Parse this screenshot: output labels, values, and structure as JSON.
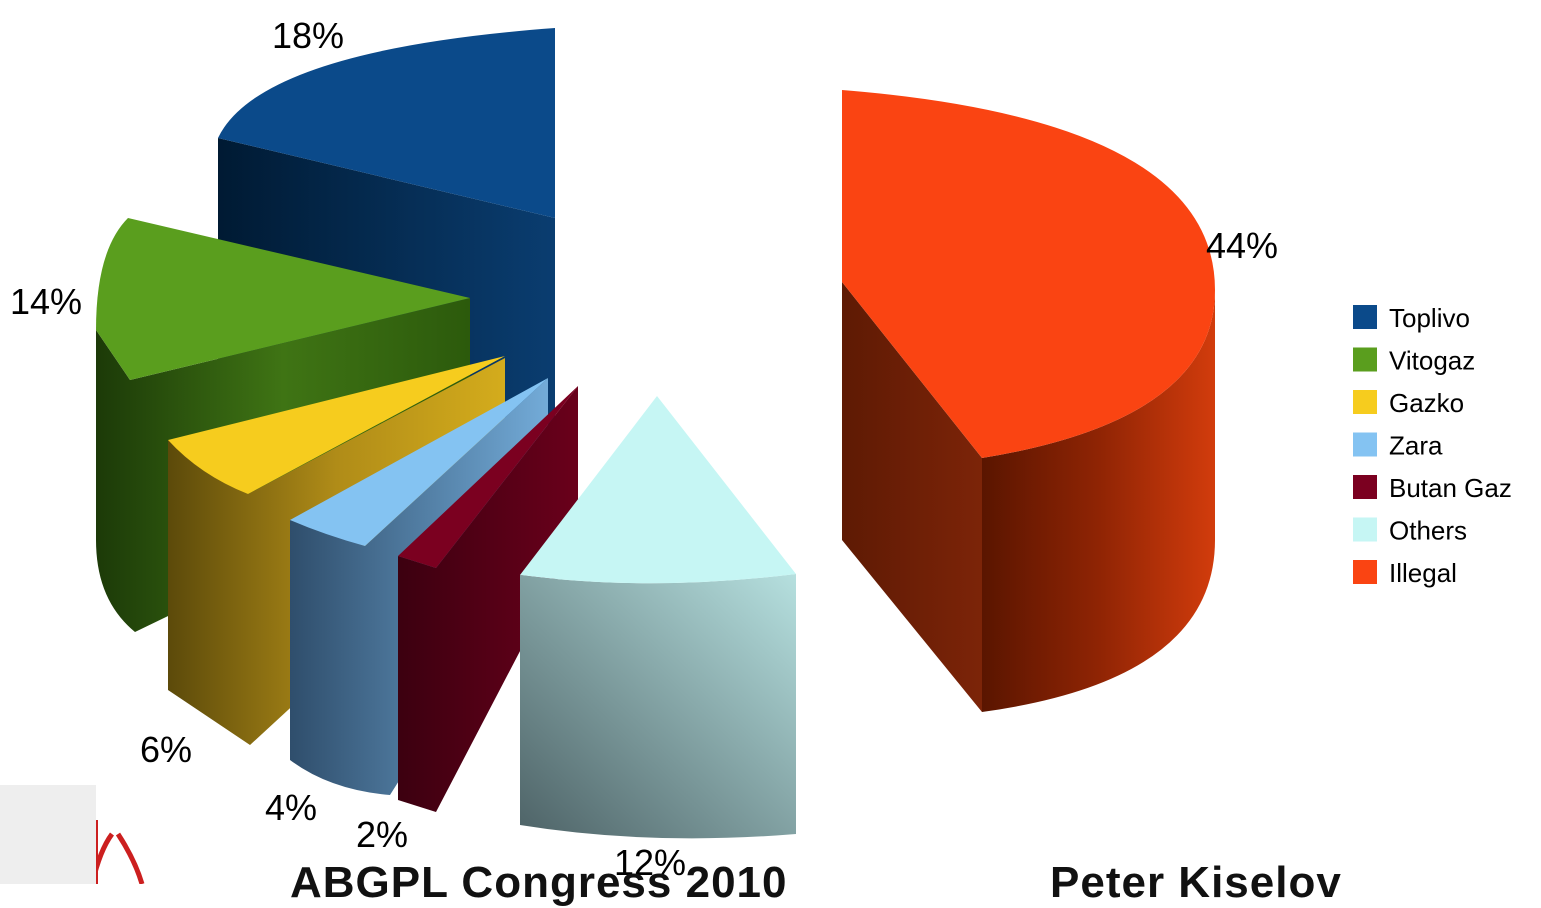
{
  "chart_data": {
    "type": "pie",
    "style": "3d-exploded",
    "title": "",
    "slices": [
      {
        "name": "Toplivo",
        "value": 18,
        "label": "18%",
        "color": "#0b4a8a"
      },
      {
        "name": "Vitogaz",
        "value": 14,
        "label": "14%",
        "color": "#5a9e1e"
      },
      {
        "name": "Gazko",
        "value": 6,
        "label": "6%",
        "color": "#f6cc1e"
      },
      {
        "name": "Zara",
        "value": 4,
        "label": "4%",
        "color": "#84c3f2"
      },
      {
        "name": "Butan Gaz",
        "value": 2,
        "label": "2%",
        "color": "#7b0020"
      },
      {
        "name": "Others",
        "value": 12,
        "label": "12%",
        "color": "#c6f6f4"
      },
      {
        "name": "Illegal",
        "value": 44,
        "label": "44%",
        "color": "#fa4412"
      }
    ],
    "legend_position": "right",
    "legend": [
      "Toplivo",
      "Vitogaz",
      "Gazko",
      "Zara",
      "Butan Gaz",
      "Others",
      "Illegal"
    ]
  },
  "footer": {
    "left": "ABGPL Congress 2010",
    "right": "Peter Kiselov"
  }
}
